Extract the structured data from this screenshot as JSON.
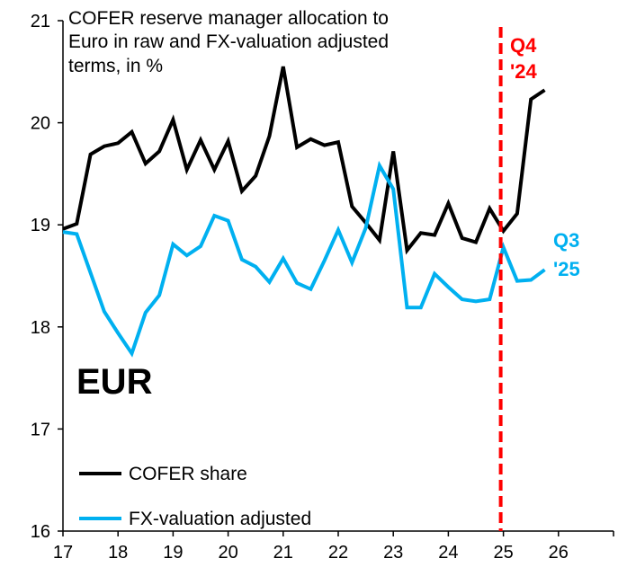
{
  "chart_data": {
    "type": "line",
    "title_lines": [
      "COFER reserve manager allocation to",
      "Euro in raw and FX-valuation adjusted",
      "terms, in %"
    ],
    "panel_label": "EUR",
    "xlabel": "",
    "ylabel": "",
    "xlim": [
      17,
      27
    ],
    "ylim": [
      16,
      21
    ],
    "x_ticks": [
      17,
      18,
      19,
      20,
      21,
      22,
      23,
      24,
      25,
      26
    ],
    "y_ticks": [
      16,
      17,
      18,
      19,
      20,
      21
    ],
    "grid": false,
    "legend_placement": "bottom-left",
    "x": [
      17.0,
      17.25,
      17.5,
      17.75,
      18.0,
      18.25,
      18.5,
      18.75,
      19.0,
      19.25,
      19.5,
      19.75,
      20.0,
      20.25,
      20.5,
      20.75,
      21.0,
      21.25,
      21.5,
      21.75,
      22.0,
      22.25,
      22.5,
      22.75,
      23.0,
      23.25,
      23.5,
      23.75,
      24.0,
      24.25,
      24.5,
      24.75,
      25.0,
      25.25,
      25.5,
      25.75
    ],
    "series": [
      {
        "name": "COFER share",
        "color": "#000000",
        "values": [
          18.96,
          19.01,
          19.69,
          19.77,
          19.8,
          19.91,
          19.6,
          19.72,
          20.03,
          19.54,
          19.83,
          19.54,
          19.82,
          19.33,
          19.48,
          19.87,
          20.55,
          19.76,
          19.84,
          19.78,
          19.81,
          19.18,
          19.02,
          18.85,
          19.72,
          18.75,
          18.92,
          18.9,
          19.21,
          18.87,
          18.83,
          19.16,
          18.94,
          19.11,
          20.23,
          20.32
        ]
      },
      {
        "name": "FX-valuation adjusted",
        "color": "#00B0F0",
        "values": [
          18.93,
          18.91,
          18.53,
          18.15,
          17.94,
          17.74,
          18.14,
          18.31,
          18.81,
          18.7,
          18.79,
          19.09,
          19.04,
          18.66,
          18.59,
          18.44,
          18.67,
          18.43,
          18.37,
          18.65,
          18.95,
          18.63,
          18.97,
          19.58,
          19.35,
          18.19,
          18.19,
          18.52,
          18.39,
          18.27,
          18.25,
          18.27,
          18.78,
          18.45,
          18.46,
          18.56
        ]
      }
    ],
    "annotations": [
      {
        "text_lines": [
          "Q4",
          "'24"
        ],
        "color": "#FF0000",
        "x": 25.0,
        "style": "dashed vertical line"
      },
      {
        "text_lines": [
          "Q3",
          "'25"
        ],
        "color": "#00B0F0"
      }
    ]
  }
}
